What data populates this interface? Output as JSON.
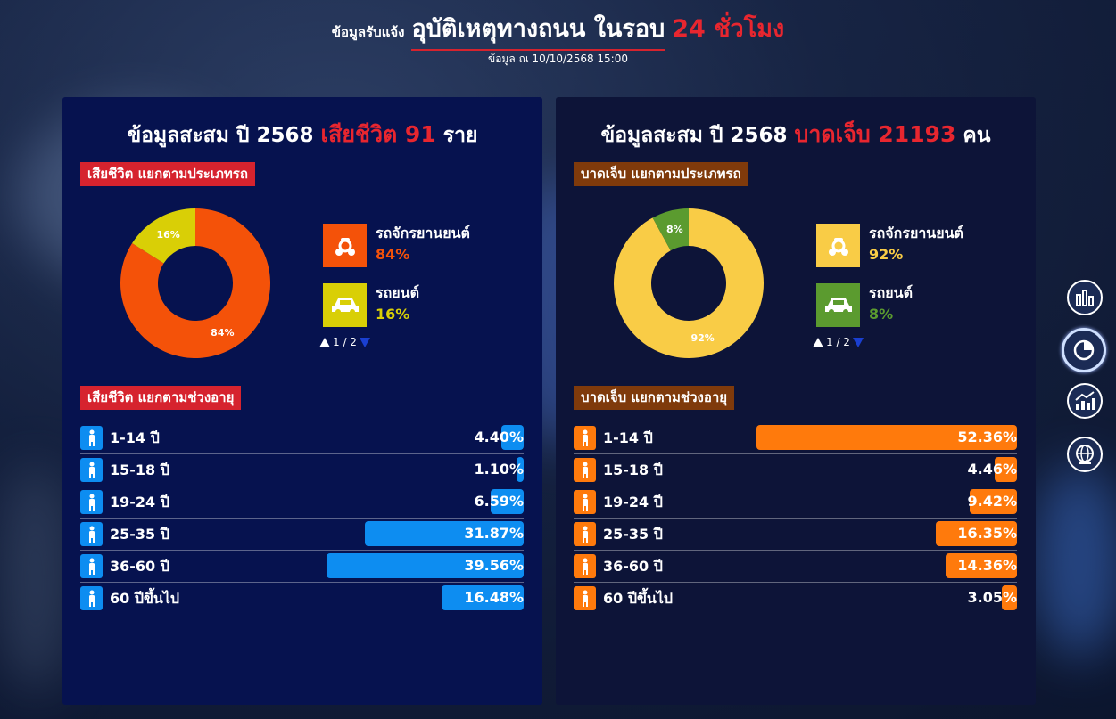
{
  "header": {
    "prefix": "ข้อมูลรับแจ้ง",
    "title": "อุบัติเหตุทางถนน ในรอบ",
    "highlight": "24 ชั่วโมง",
    "asof": "ข้อมูล ณ 10/10/2568 15:00"
  },
  "left": {
    "heading_prefix": "ข้อมูลสะสม ปี 2568",
    "heading_hl": "เสียชีวิต 91",
    "heading_suffix": "ราย",
    "type_tag": "เสียชีวิต แยกตามประเภทรถ",
    "age_tag": "เสียชีวิต แยกตามช่วงอายุ",
    "legend": [
      {
        "name": "รถจักรยานยนต์",
        "pct": "84%",
        "color": "#f45209",
        "icon": "motorcycle-icon"
      },
      {
        "name": "รถยนต์",
        "pct": "16%",
        "color": "#d9cf06",
        "icon": "car-icon"
      }
    ],
    "donut": {
      "labels": [
        "84%",
        "16%"
      ],
      "values": [
        84,
        16
      ],
      "colors": [
        "#f45209",
        "#d9cf06"
      ]
    },
    "pager": "1 / 2",
    "ages": [
      {
        "label": "1-14 ปี",
        "value": "4.40%",
        "pct": 4.4,
        "icon": "child-icon"
      },
      {
        "label": "15-18 ปี",
        "value": "1.10%",
        "pct": 1.1,
        "icon": "teen-icon"
      },
      {
        "label": "19-24 ปี",
        "value": "6.59%",
        "pct": 6.59,
        "icon": "walking-person-icon"
      },
      {
        "label": "25-35 ปี",
        "value": "31.87%",
        "pct": 31.87,
        "icon": "walking-person-icon"
      },
      {
        "label": "36-60 ปี",
        "value": "39.56%",
        "pct": 39.56,
        "icon": "walking-person-icon"
      },
      {
        "label": "60 ปีขึ้นไป",
        "value": "16.48%",
        "pct": 16.48,
        "icon": "elderly-icon"
      }
    ],
    "bar_color": "#0d8df1"
  },
  "right": {
    "heading_prefix": "ข้อมูลสะสม ปี 2568",
    "heading_hl": "บาดเจ็บ 21193",
    "heading_suffix": "คน",
    "type_tag": "บาดเจ็บ แยกตามประเภทรถ",
    "age_tag": "บาดเจ็บ แยกตามช่วงอายุ",
    "legend": [
      {
        "name": "รถจักรยานยนต์",
        "pct": "92%",
        "color": "#f9cc46",
        "icon": "motorcycle-icon"
      },
      {
        "name": "รถยนต์",
        "pct": "8%",
        "color": "#5b9b2f",
        "icon": "car-icon"
      }
    ],
    "donut": {
      "labels": [
        "92%",
        "8%"
      ],
      "values": [
        92,
        8
      ],
      "colors": [
        "#f9cc46",
        "#5b9b2f"
      ]
    },
    "pager": "1 / 2",
    "ages": [
      {
        "label": "1-14 ปี",
        "value": "52.36%",
        "pct": 52.36,
        "icon": "child-icon"
      },
      {
        "label": "15-18 ปี",
        "value": "4.46%",
        "pct": 4.46,
        "icon": "teen-icon"
      },
      {
        "label": "19-24 ปี",
        "value": "9.42%",
        "pct": 9.42,
        "icon": "walking-person-icon"
      },
      {
        "label": "25-35 ปี",
        "value": "16.35%",
        "pct": 16.35,
        "icon": "walking-person-icon"
      },
      {
        "label": "36-60 ปี",
        "value": "14.36%",
        "pct": 14.36,
        "icon": "walking-person-icon"
      },
      {
        "label": "60 ปีขึ้นไป",
        "value": "3.05%",
        "pct": 3.05,
        "icon": "elderly-icon"
      }
    ],
    "bar_color": "#ff7a0c"
  },
  "side_nav": [
    {
      "icon": "bar-chart-icon"
    },
    {
      "icon": "pie-chart-icon",
      "active": true
    },
    {
      "icon": "trend-chart-icon"
    },
    {
      "icon": "globe-icon"
    }
  ]
}
